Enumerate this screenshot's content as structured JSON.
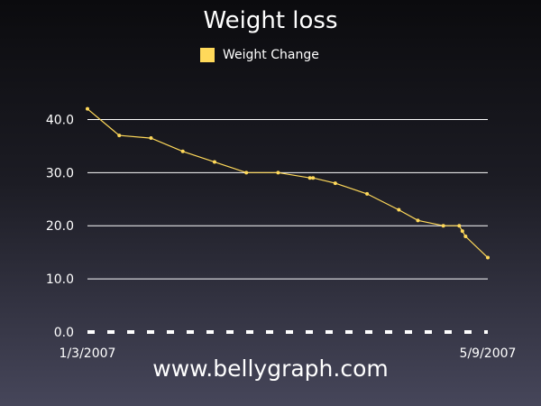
{
  "chart_data": {
    "type": "line",
    "title": "Weight loss",
    "x_tick_labels": [
      "1/3/2007",
      "5/9/2007"
    ],
    "xlim": [
      "2007-01-03",
      "2007-05-09"
    ],
    "ylim": [
      0,
      45
    ],
    "y_ticks": [
      0,
      10,
      20,
      30,
      40
    ],
    "y_tick_format": 1,
    "grid": true,
    "legend_position": "top-center",
    "series": [
      {
        "name": "Weight Change",
        "color": "#ffd95a",
        "points": [
          {
            "x": "2007-01-03",
            "y": 42
          },
          {
            "x": "2007-01-13",
            "y": 37
          },
          {
            "x": "2007-01-23",
            "y": 36.5
          },
          {
            "x": "2007-02-02",
            "y": 34
          },
          {
            "x": "2007-02-12",
            "y": 32
          },
          {
            "x": "2007-02-22",
            "y": 30
          },
          {
            "x": "2007-03-04",
            "y": 30
          },
          {
            "x": "2007-03-14",
            "y": 29
          },
          {
            "x": "2007-03-15",
            "y": 29
          },
          {
            "x": "2007-03-22",
            "y": 28
          },
          {
            "x": "2007-04-01",
            "y": 26
          },
          {
            "x": "2007-04-11",
            "y": 23
          },
          {
            "x": "2007-04-17",
            "y": 21
          },
          {
            "x": "2007-04-25",
            "y": 20
          },
          {
            "x": "2007-04-30",
            "y": 20
          },
          {
            "x": "2007-05-01",
            "y": 19
          },
          {
            "x": "2007-05-02",
            "y": 18
          },
          {
            "x": "2007-05-09",
            "y": 14
          }
        ]
      }
    ]
  },
  "footer": {
    "site": "www.bellygraph.com"
  }
}
